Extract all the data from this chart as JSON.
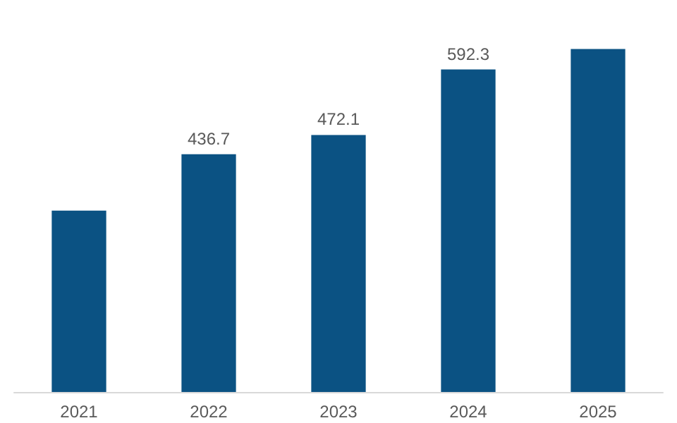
{
  "chart_data": {
    "type": "bar",
    "categories": [
      "2021",
      "2022",
      "2023",
      "2024",
      "2025"
    ],
    "values": [
      333,
      436.7,
      472.1,
      592.3,
      630
    ],
    "value_labels": [
      null,
      "436.7",
      "472.1",
      "592.3",
      null
    ],
    "color": "#0b5283",
    "tick_labels": "x"
  }
}
